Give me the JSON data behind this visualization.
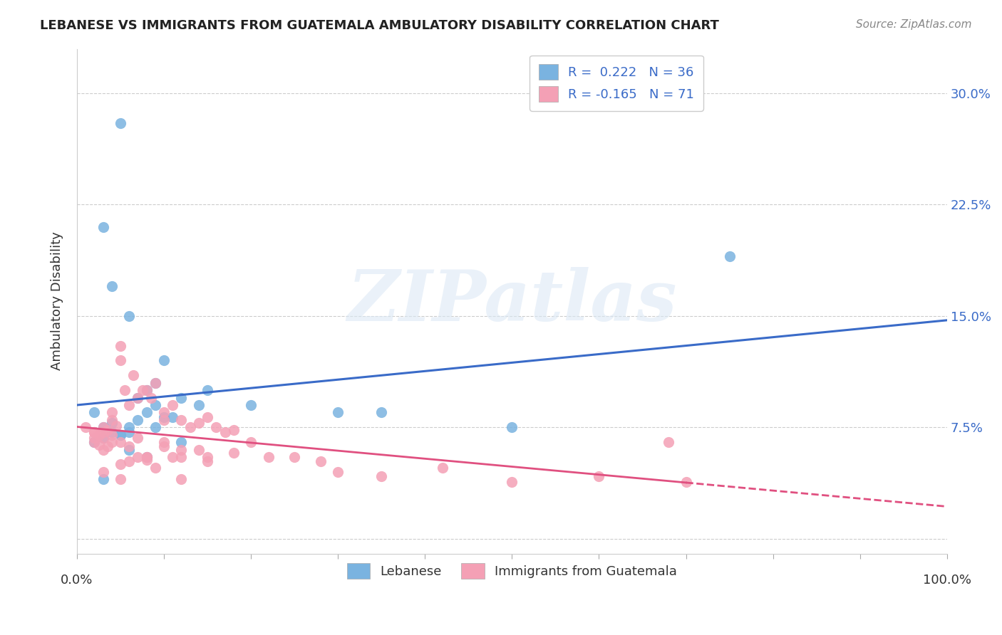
{
  "title": "LEBANESE VS IMMIGRANTS FROM GUATEMALA AMBULATORY DISABILITY CORRELATION CHART",
  "source": "Source: ZipAtlas.com",
  "ylabel": "Ambulatory Disability",
  "yticks": [
    0.0,
    0.075,
    0.15,
    0.225,
    0.3
  ],
  "ytick_labels": [
    "",
    "7.5%",
    "15.0%",
    "22.5%",
    "30.0%"
  ],
  "xlim": [
    0.0,
    1.0
  ],
  "ylim": [
    -0.01,
    0.33
  ],
  "background_color": "#ffffff",
  "grid_color": "#cccccc",
  "watermark": "ZIPatlas",
  "blue_color": "#7ab3e0",
  "pink_color": "#f4a0b5",
  "blue_line_color": "#3a6bc8",
  "pink_line_color": "#e05080",
  "legend_label_blue": "Lebanese",
  "legend_label_pink": "Immigrants from Guatemala",
  "blue_points_x": [
    0.02,
    0.05,
    0.03,
    0.04,
    0.06,
    0.08,
    0.07,
    0.09,
    0.1,
    0.03,
    0.04,
    0.05,
    0.06,
    0.07,
    0.12,
    0.15,
    0.2,
    0.08,
    0.09,
    0.1,
    0.11,
    0.14,
    0.3,
    0.02,
    0.03,
    0.04,
    0.05,
    0.06,
    0.08,
    0.5,
    0.75,
    0.03,
    0.06,
    0.09,
    0.12,
    0.35
  ],
  "blue_points_y": [
    0.085,
    0.28,
    0.21,
    0.17,
    0.15,
    0.1,
    0.095,
    0.105,
    0.12,
    0.075,
    0.078,
    0.07,
    0.072,
    0.08,
    0.095,
    0.1,
    0.09,
    0.085,
    0.09,
    0.082,
    0.082,
    0.09,
    0.085,
    0.065,
    0.068,
    0.072,
    0.07,
    0.06,
    0.055,
    0.075,
    0.19,
    0.04,
    0.075,
    0.075,
    0.065,
    0.085
  ],
  "pink_points_x": [
    0.01,
    0.02,
    0.02,
    0.025,
    0.03,
    0.03,
    0.035,
    0.04,
    0.04,
    0.045,
    0.05,
    0.05,
    0.055,
    0.06,
    0.065,
    0.07,
    0.075,
    0.08,
    0.085,
    0.09,
    0.1,
    0.1,
    0.11,
    0.12,
    0.13,
    0.14,
    0.15,
    0.16,
    0.17,
    0.18,
    0.02,
    0.025,
    0.03,
    0.035,
    0.04,
    0.05,
    0.06,
    0.07,
    0.08,
    0.09,
    0.1,
    0.11,
    0.12,
    0.14,
    0.15,
    0.2,
    0.25,
    0.3,
    0.02,
    0.03,
    0.04,
    0.05,
    0.06,
    0.07,
    0.08,
    0.1,
    0.12,
    0.15,
    0.18,
    0.22,
    0.28,
    0.35,
    0.42,
    0.5,
    0.6,
    0.7,
    0.03,
    0.05,
    0.08,
    0.12,
    0.68
  ],
  "pink_points_y": [
    0.075,
    0.072,
    0.068,
    0.07,
    0.075,
    0.072,
    0.073,
    0.085,
    0.08,
    0.076,
    0.13,
    0.12,
    0.1,
    0.09,
    0.11,
    0.095,
    0.1,
    0.1,
    0.095,
    0.105,
    0.08,
    0.085,
    0.09,
    0.08,
    0.075,
    0.078,
    0.082,
    0.075,
    0.072,
    0.073,
    0.065,
    0.063,
    0.06,
    0.062,
    0.065,
    0.05,
    0.052,
    0.055,
    0.053,
    0.048,
    0.065,
    0.055,
    0.055,
    0.06,
    0.052,
    0.065,
    0.055,
    0.045,
    0.072,
    0.068,
    0.07,
    0.065,
    0.062,
    0.068,
    0.055,
    0.062,
    0.06,
    0.055,
    0.058,
    0.055,
    0.052,
    0.042,
    0.048,
    0.038,
    0.042,
    0.038,
    0.045,
    0.04,
    0.055,
    0.04,
    0.065
  ]
}
